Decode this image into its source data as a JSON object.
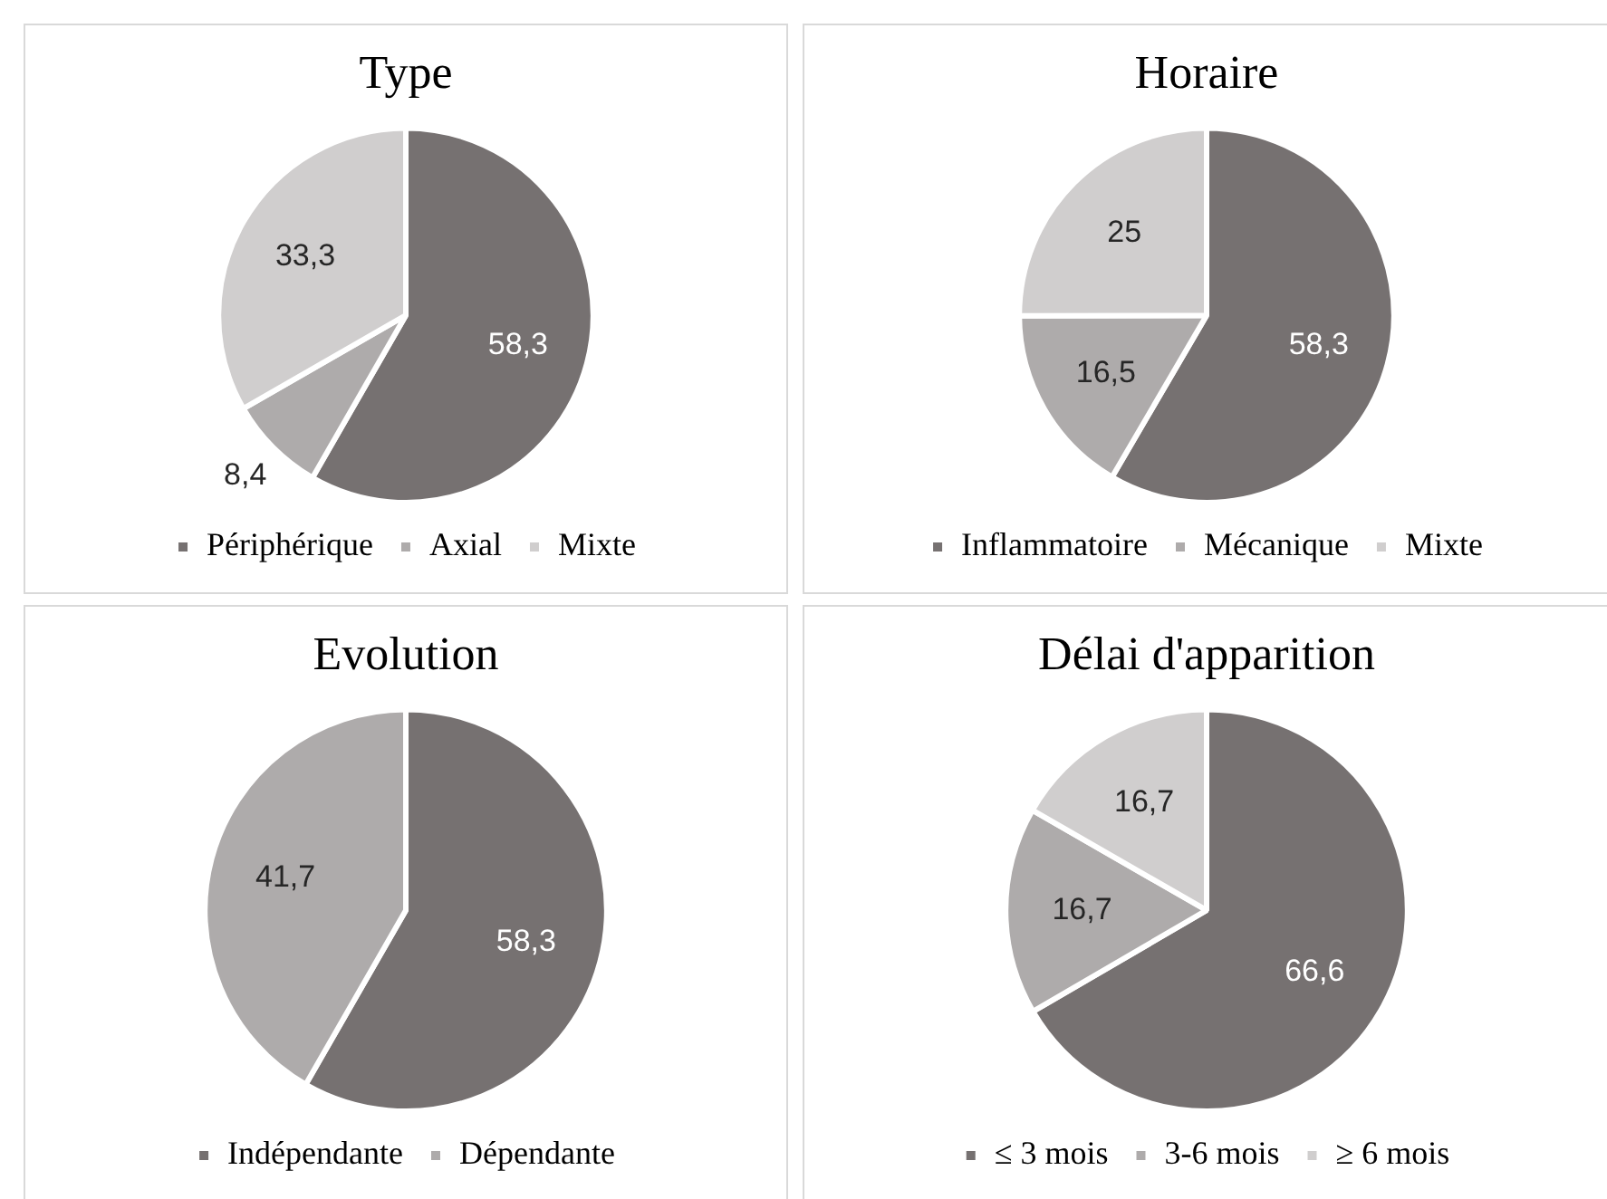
{
  "chart_data": [
    {
      "type": "pie",
      "title": "Type",
      "categories": [
        "Périphérique",
        "Axial",
        "Mixte"
      ],
      "values": [
        58.3,
        8.4,
        33.3
      ],
      "value_labels": [
        "58,3",
        "8,4",
        "33,3"
      ],
      "colors": [
        "#767171",
        "#aeabab",
        "#d0cece"
      ],
      "legend": "bottom"
    },
    {
      "type": "pie",
      "title": "Horaire",
      "categories": [
        "Inflammatoire",
        "Mécanique",
        "Mixte"
      ],
      "values": [
        58.3,
        16.5,
        25
      ],
      "value_labels": [
        "58,3",
        "16,5",
        "25"
      ],
      "colors": [
        "#767171",
        "#aeabab",
        "#d0cece"
      ],
      "legend": "bottom"
    },
    {
      "type": "pie",
      "title": "Evolution",
      "categories": [
        "Indépendante",
        "Dépendante"
      ],
      "values": [
        58.3,
        41.7
      ],
      "value_labels": [
        "58,3",
        "41,7"
      ],
      "colors": [
        "#767171",
        "#aeabab"
      ],
      "legend": "bottom"
    },
    {
      "type": "pie",
      "title": "Délai d'apparition",
      "categories": [
        "≤ 3 mois",
        "3-6 mois",
        "≥ 6 mois"
      ],
      "values": [
        66.6,
        16.7,
        16.7
      ],
      "value_labels": [
        "66,6",
        "16,7",
        "16,7"
      ],
      "colors": [
        "#767171",
        "#aeabab",
        "#d0cece"
      ],
      "legend": "bottom"
    }
  ]
}
